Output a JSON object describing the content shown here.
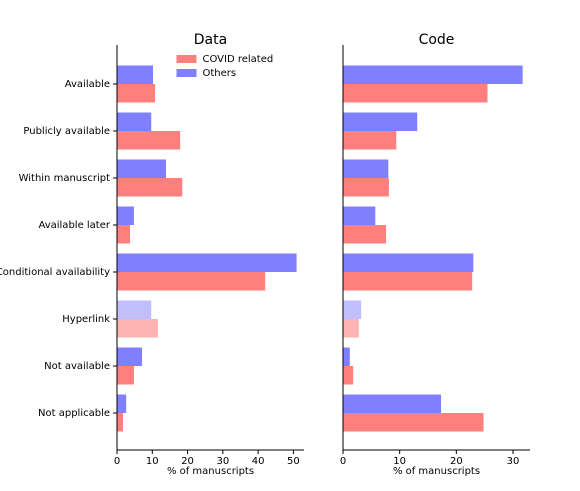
{
  "chart_data": [
    {
      "type": "barh",
      "title": "Data",
      "xlabel": "% of manuscripts",
      "categories": [
        "Available",
        "Publicly available",
        "Within manuscript",
        "Available later",
        "Conditional availability",
        "Hyperlink",
        "Not available",
        "Not applicable"
      ],
      "series": [
        {
          "name": "COVID related",
          "color": "#ff7f7f",
          "bar_colors": [
            "#ff7f7f",
            "#ff7f7f",
            "#ff7f7f",
            "#ff7f7f",
            "#ff7f7f",
            "#ffb2b2",
            "#ff7f7f",
            "#ff7f7f"
          ],
          "values": [
            10.8,
            17.9,
            18.5,
            3.7,
            42.0,
            11.6,
            4.8,
            1.7
          ]
        },
        {
          "name": "Others",
          "color": "#7f7fff",
          "bar_colors": [
            "#7f7fff",
            "#7f7fff",
            "#7f7fff",
            "#7f7fff",
            "#7f7fff",
            "#bfbfff",
            "#7f7fff",
            "#7f7fff"
          ],
          "values": [
            10.2,
            9.7,
            13.9,
            4.8,
            50.9,
            9.7,
            7.1,
            2.6
          ]
        }
      ],
      "xlim": [
        0,
        53
      ],
      "xticks": [
        0,
        10,
        20,
        30,
        40,
        50
      ],
      "legend": "upper center"
    },
    {
      "type": "barh",
      "title": "Code",
      "xlabel": "% of manuscripts",
      "series": [
        {
          "color": "#ff7f7f",
          "bar_colors": [
            "#ff7f7f",
            "#ff7f7f",
            "#ff7f7f",
            "#ff7f7f",
            "#ff7f7f",
            "#ffb2b2",
            "#ff7f7f",
            "#ff7f7f"
          ],
          "values": [
            25.5,
            9.4,
            8.1,
            7.6,
            22.8,
            2.8,
            1.8,
            24.8
          ]
        },
        {
          "color": "#7f7fff",
          "bar_colors": [
            "#7f7fff",
            "#7f7fff",
            "#7f7fff",
            "#7f7fff",
            "#7f7fff",
            "#bfbfff",
            "#7f7fff",
            "#7f7fff"
          ],
          "values": [
            31.7,
            13.1,
            8.0,
            5.7,
            23.0,
            3.2,
            1.2,
            17.3
          ]
        }
      ],
      "xlim": [
        0,
        33
      ],
      "xticks": [
        0,
        10,
        20,
        30
      ]
    }
  ]
}
